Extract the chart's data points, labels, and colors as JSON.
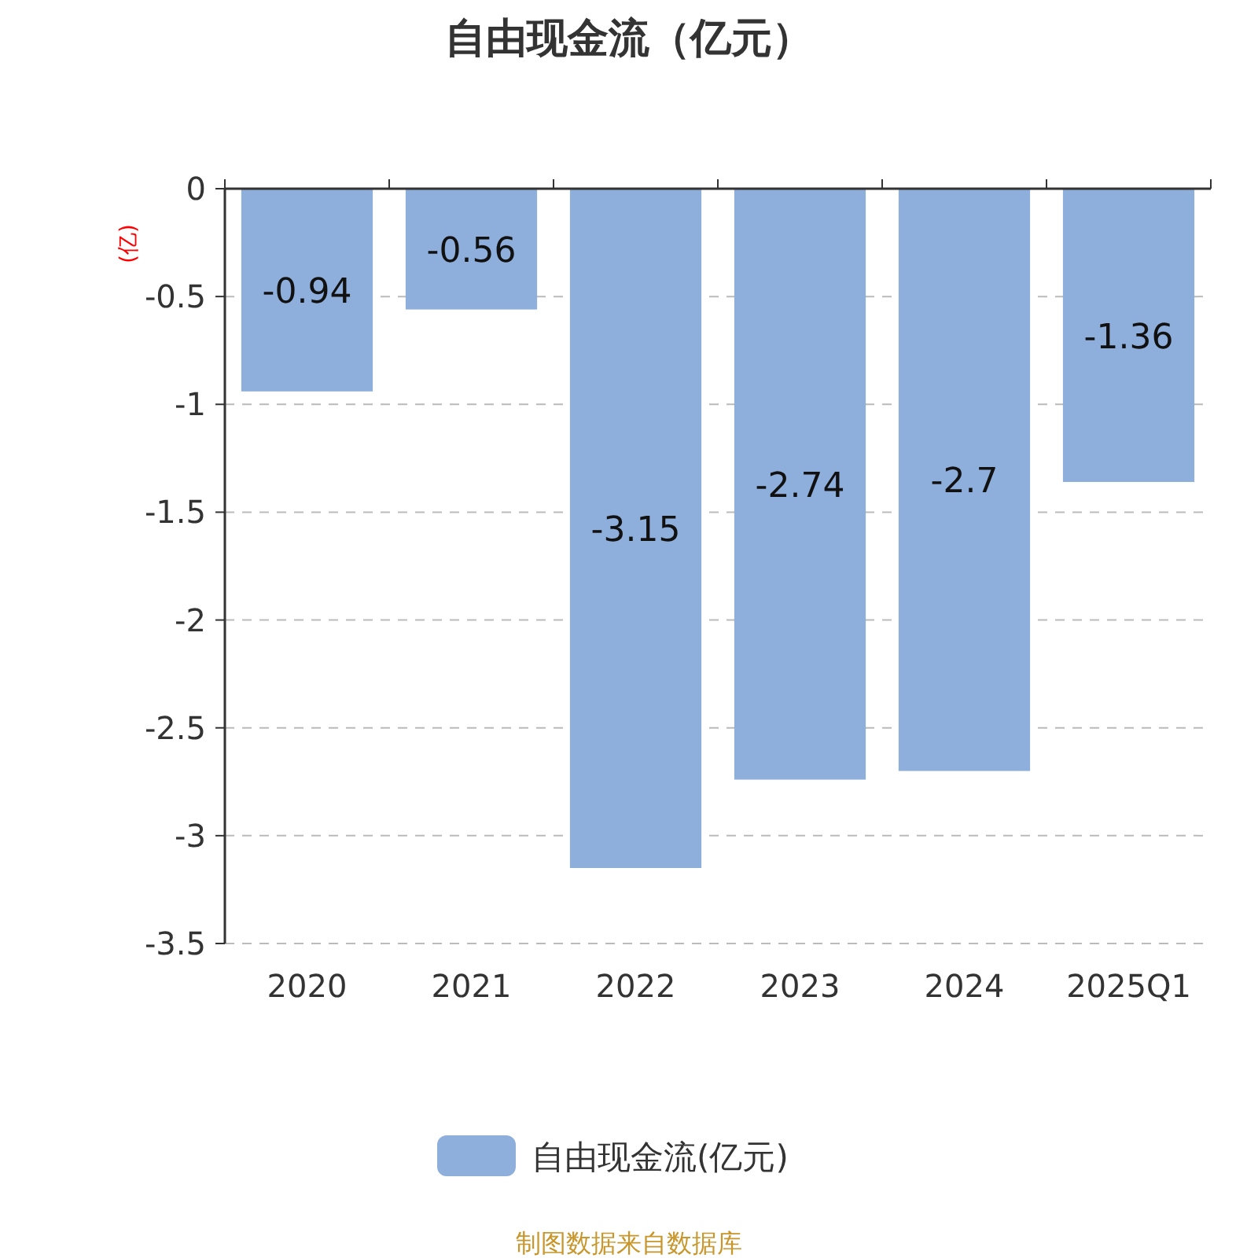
{
  "chart_data": {
    "type": "bar",
    "title": "自由现金流（亿元）",
    "ylabel": "(亿)",
    "categories": [
      "2020",
      "2021",
      "2022",
      "2023",
      "2024",
      "2025Q1"
    ],
    "series": [
      {
        "name": "自由现金流(亿元)",
        "color": "#8eaedb",
        "values": [
          -0.94,
          -0.56,
          -3.15,
          -2.74,
          -2.7,
          -1.36
        ]
      }
    ],
    "ylim": [
      -3.5,
      0
    ],
    "yticks": [
      0,
      -0.5,
      -1,
      -1.5,
      -2,
      -2.5,
      -3,
      -3.5
    ],
    "grid": "y",
    "legend": "bottom",
    "data_labels": true,
    "annotations": [
      "制图数据来自数据库"
    ]
  }
}
